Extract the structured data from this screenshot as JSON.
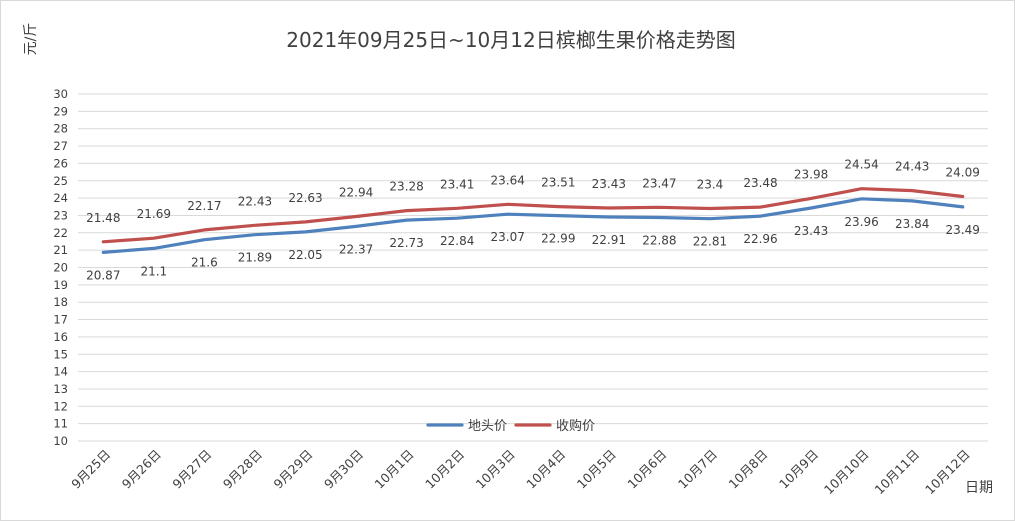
{
  "chart_data": {
    "type": "line",
    "title": "2021年09月25日~10月12日槟榔生果价格走势图",
    "ylabel": "元/斤",
    "xlabel": "日期",
    "categories": [
      "9月25日",
      "9月26日",
      "9月27日",
      "9月28日",
      "9月29日",
      "9月30日",
      "10月1日",
      "10月2日",
      "10月3日",
      "10月4日",
      "10月5日",
      "10月6日",
      "10月7日",
      "10月8日",
      "10月9日",
      "10月10日",
      "10月11日",
      "10月12日"
    ],
    "ylim": [
      10,
      30
    ],
    "ytick_step": 1,
    "grid": true,
    "legend_position": "bottom-center",
    "series": [
      {
        "name": "地头价",
        "color": "#4F81BD",
        "values": [
          20.87,
          21.1,
          21.6,
          21.89,
          22.05,
          22.37,
          22.73,
          22.84,
          23.07,
          22.99,
          22.91,
          22.88,
          22.81,
          22.96,
          23.43,
          23.96,
          23.84,
          23.49
        ]
      },
      {
        "name": "收购价",
        "color": "#C0504D",
        "values": [
          21.48,
          21.69,
          22.17,
          22.43,
          22.63,
          22.94,
          23.28,
          23.41,
          23.64,
          23.51,
          23.43,
          23.47,
          23.4,
          23.48,
          23.98,
          24.54,
          24.43,
          24.09
        ]
      }
    ]
  }
}
